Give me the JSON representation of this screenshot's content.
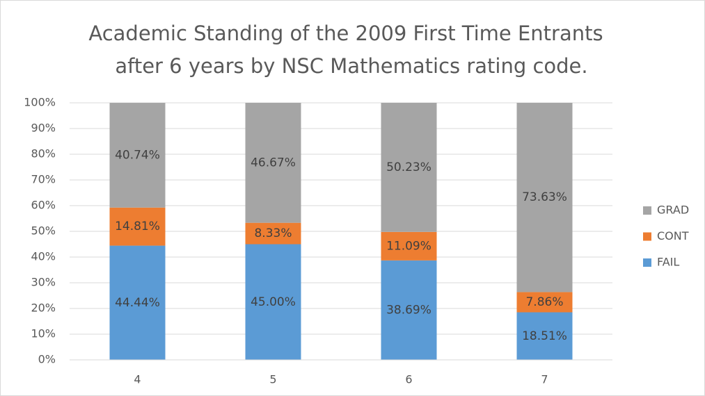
{
  "chart_data": {
    "type": "stacked_bar",
    "title": [
      "Academic Standing of the 2009 First Time Entrants",
      "after 6 years by NSC Mathematics rating code."
    ],
    "categories": [
      "4",
      "5",
      "6",
      "7"
    ],
    "series": [
      {
        "name": "FAIL",
        "color": "#5b9bd5",
        "values": [
          44.44,
          45.0,
          38.69,
          18.51
        ],
        "value_labels": [
          "44.44%",
          "45.00%",
          "38.69%",
          "18.51%"
        ]
      },
      {
        "name": "CONT",
        "color": "#ed7d31",
        "values": [
          14.81,
          8.33,
          11.09,
          7.86
        ],
        "value_labels": [
          "14.81%",
          "8.33%",
          "11.09%",
          "7.86%"
        ]
      },
      {
        "name": "GRAD",
        "color": "#a5a5a5",
        "values": [
          40.74,
          46.67,
          50.23,
          73.63
        ],
        "value_labels": [
          "40.74%",
          "46.67%",
          "50.23%",
          "73.63%"
        ]
      }
    ],
    "ylim": [
      0,
      100
    ],
    "yticks": [
      {
        "value": 0,
        "label": "0%"
      },
      {
        "value": 10,
        "label": "10%"
      },
      {
        "value": 20,
        "label": "20%"
      },
      {
        "value": 30,
        "label": "30%"
      },
      {
        "value": 40,
        "label": "40%"
      },
      {
        "value": 50,
        "label": "50%"
      },
      {
        "value": 60,
        "label": "60%"
      },
      {
        "value": 70,
        "label": "70%"
      },
      {
        "value": 80,
        "label": "80%"
      },
      {
        "value": 90,
        "label": "90%"
      },
      {
        "value": 100,
        "label": "100%"
      }
    ],
    "grid": true,
    "legend": "right"
  }
}
